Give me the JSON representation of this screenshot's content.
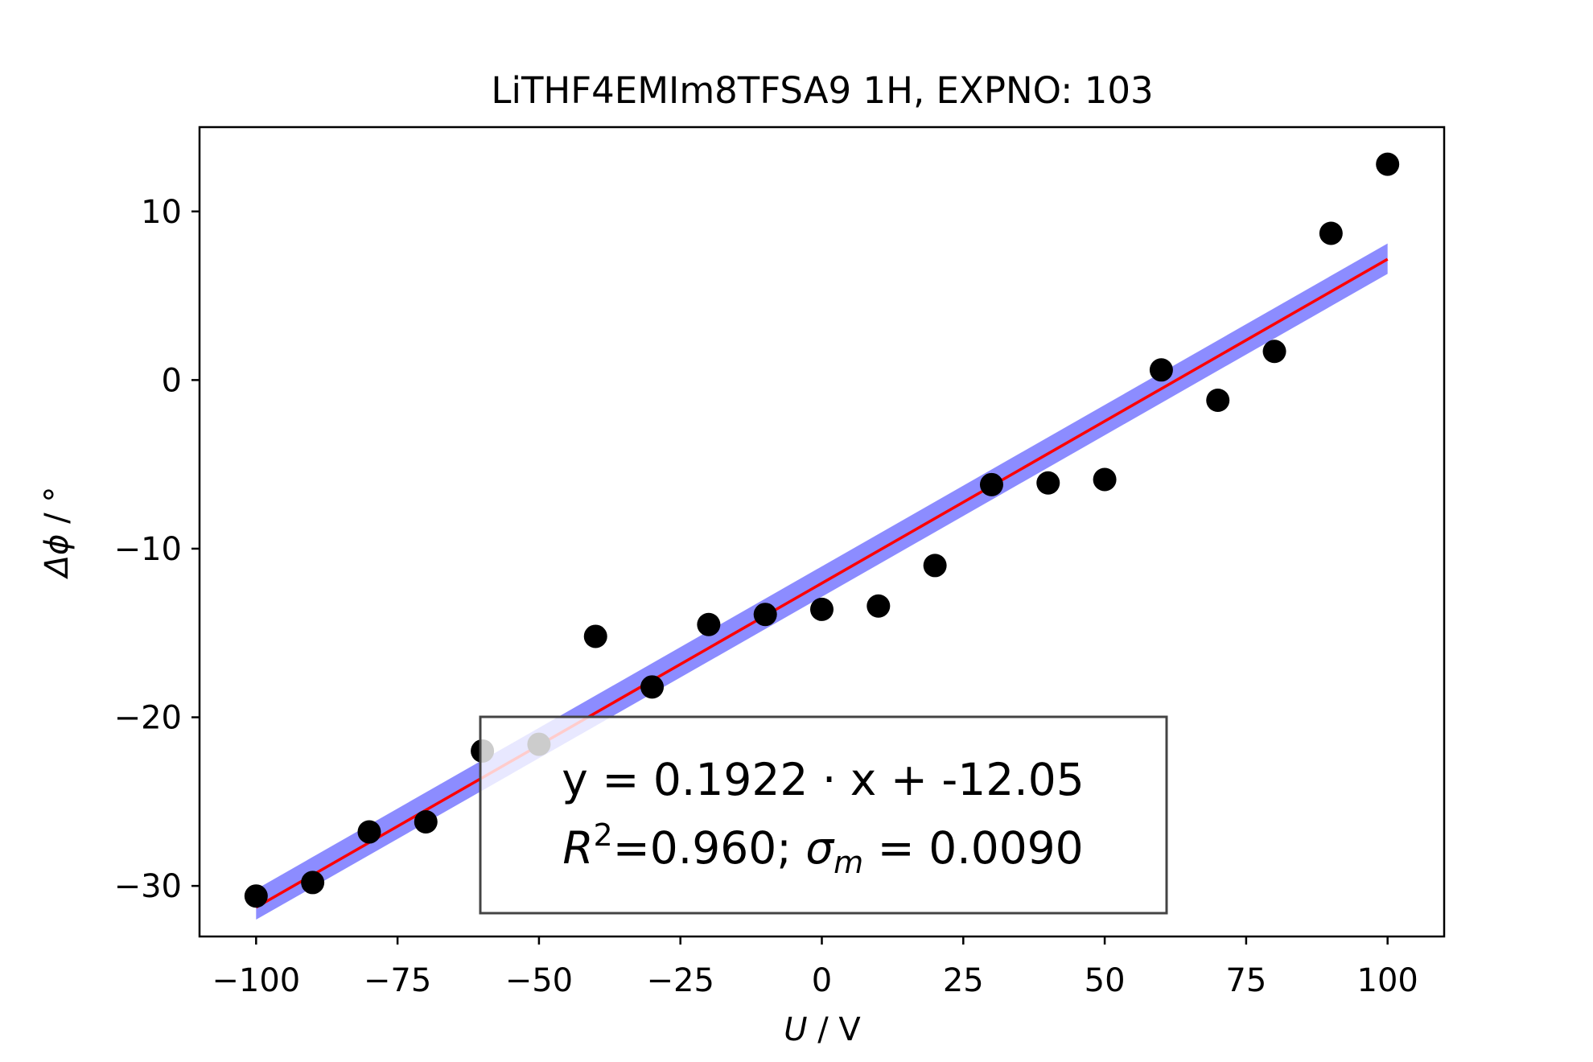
{
  "chart_data": {
    "type": "scatter",
    "title": "LiTHF4EMIm8TFSA9 1H, EXPNO: 103",
    "xlabel_var": "U",
    "xlabel_unit": " / V",
    "ylabel_var": "Δϕ",
    "ylabel_unit": " / °",
    "xlim": [
      -110,
      110
    ],
    "ylim": [
      -33,
      15
    ],
    "xticks": [
      -100,
      -75,
      -50,
      -25,
      0,
      25,
      50,
      75,
      100
    ],
    "xtick_labels": [
      "−100",
      "−75",
      "−50",
      "−25",
      "0",
      "25",
      "50",
      "75",
      "100"
    ],
    "yticks": [
      -30,
      -20,
      -10,
      0,
      10
    ],
    "ytick_labels": [
      "−30",
      "−20",
      "−10",
      "0",
      "10"
    ],
    "grid": false,
    "colors": {
      "points": "#000000",
      "fit": "#ff0000",
      "band": "#0000ff"
    },
    "series": [
      {
        "kind": "points",
        "x": [
          -100,
          -90,
          -80,
          -70,
          -60,
          -50,
          -40,
          -30,
          -20,
          -10,
          0,
          10,
          20,
          30,
          40,
          50,
          60,
          70,
          80,
          90,
          100
        ],
        "y": [
          -30.6,
          -29.8,
          -26.8,
          -26.2,
          -22.0,
          -21.6,
          -15.2,
          -18.2,
          -14.5,
          -13.9,
          -13.6,
          -13.4,
          -11.0,
          -6.2,
          -6.1,
          -5.9,
          0.6,
          -1.2,
          1.7,
          8.7,
          12.8
        ]
      },
      {
        "kind": "fit",
        "slope": 0.1922,
        "intercept": -12.05,
        "band_at_xmin": [
          -32.0,
          -30.2
        ],
        "band_at_xmax": [
          6.3,
          8.1
        ]
      }
    ],
    "annotation": {
      "line1": "y = 0.1922 · x + -12.05",
      "r2_symbol": "R",
      "r2_exp": "2",
      "r2_value": "=0.960; ",
      "sigma_symbol": "σ",
      "sigma_sub": "m",
      "sigma_value": " = 0.0090"
    }
  }
}
